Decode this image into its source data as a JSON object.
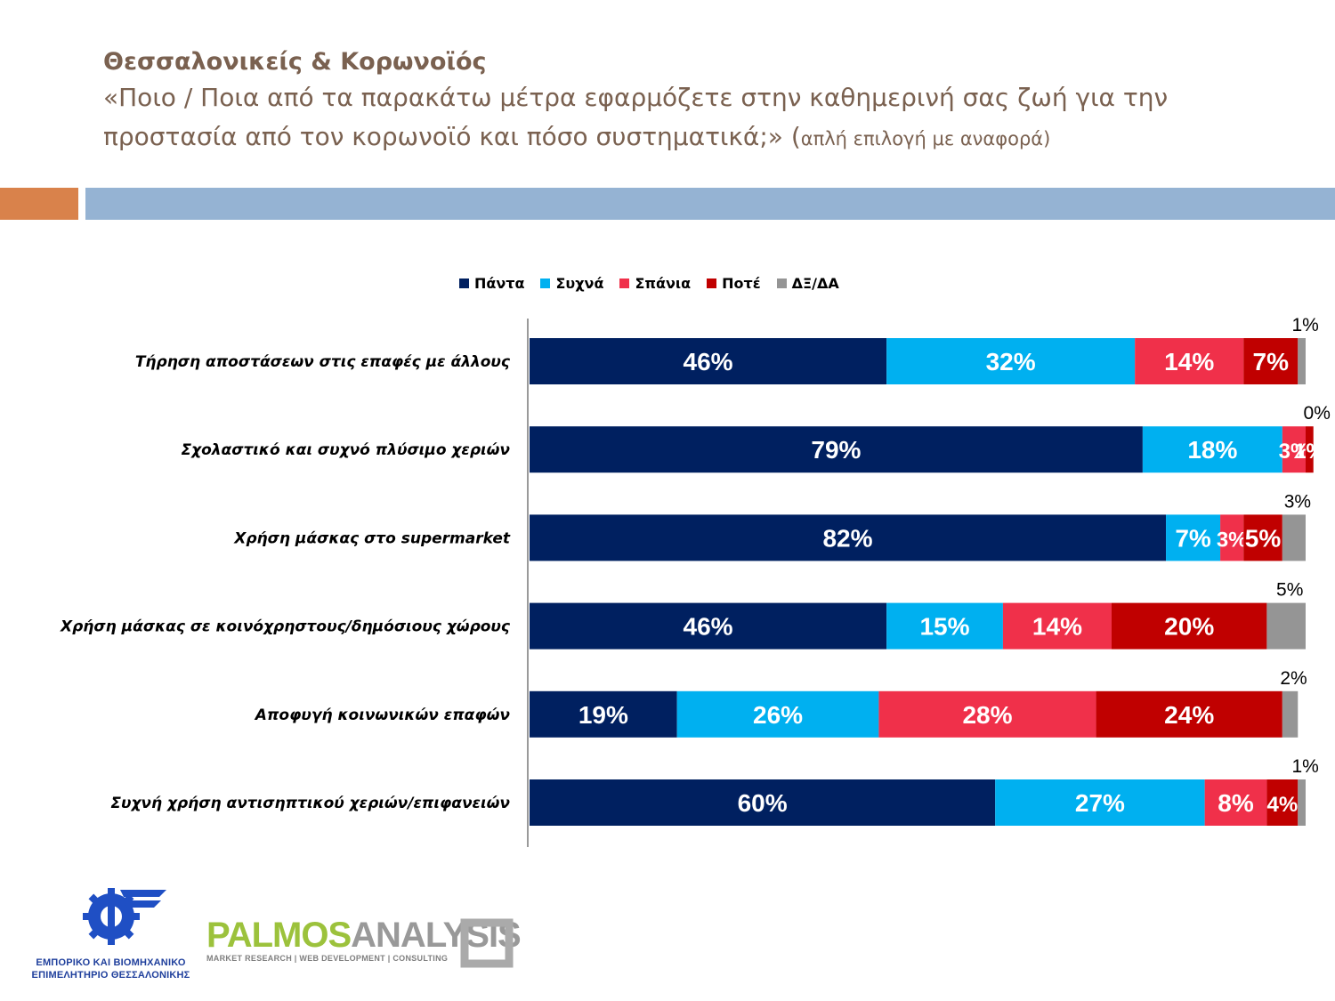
{
  "header": {
    "title": "Θεσσαλονικείς & Κορωνοϊός",
    "question": "«Ποιο / Ποια από τα παρακάτω μέτρα εφαρμόζετε στην καθημερινή σας ζωή για την προστασία από τον κορωνοϊό και πόσο συστηματικά;» (",
    "note": "απλή επιλογή με αναφορά)"
  },
  "chart_data": {
    "type": "bar",
    "orientation": "horizontal-stacked",
    "categories": [
      "Τήρηση αποστάσεων στις επαφές με άλλους",
      "Σχολαστικό και συχνό πλύσιμο χεριών",
      "Χρήση μάσκας στο supermarket",
      "Χρήση μάσκας σε κοινόχρηστους/δημόσιους χώρους",
      "Αποφυγή κοινωνικών επαφών",
      "Συχνή χρήση αντισηπτικού χεριών/επιφανειών"
    ],
    "series": [
      {
        "name": "Πάντα",
        "color": "#002060",
        "values": [
          46,
          79,
          82,
          46,
          19,
          60
        ]
      },
      {
        "name": "Συχνά",
        "color": "#00b0f0",
        "values": [
          32,
          18,
          7,
          15,
          26,
          27
        ]
      },
      {
        "name": "Σπάνια",
        "color": "#f0304a",
        "values": [
          14,
          3,
          3,
          14,
          28,
          8
        ]
      },
      {
        "name": "Ποτέ",
        "color": "#c00000",
        "values": [
          7,
          1,
          5,
          20,
          24,
          4
        ]
      },
      {
        "name": "ΔΞ/ΔΑ",
        "color": "#959595",
        "values": [
          1,
          0,
          3,
          5,
          2,
          1
        ]
      }
    ],
    "legend_position": "top",
    "xlim": [
      0,
      100
    ],
    "unit": "%"
  },
  "logos": {
    "left_caption_1": "ΕΜΠΟΡΙΚΟ ΚΑΙ ΒΙΟΜΗΧΑΝΙΚΟ",
    "left_caption_2": "ΕΠΙΜΕΛΗΤΗΡΙΟ ΘΕΣΣΑΛΟΝΙΚΗΣ",
    "right_word_1": "PALMOS",
    "right_word_2": "ANALYSIS",
    "right_tagline": "MARKET RESEARCH | WEB DEVELOPMENT | CONSULTING"
  }
}
